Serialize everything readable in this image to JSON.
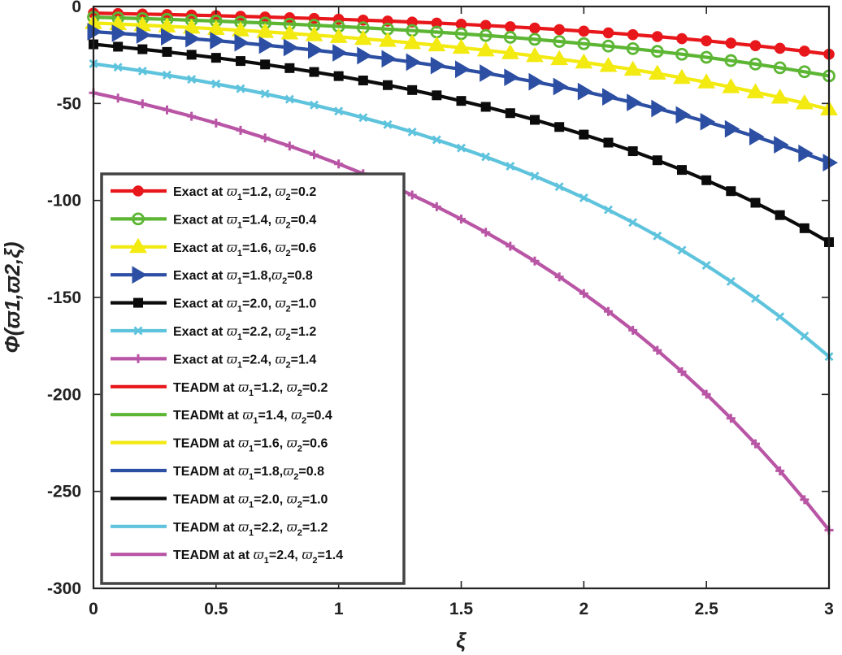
{
  "chart_data": {
    "type": "line",
    "title": "",
    "xlabel": "ξ",
    "ylabel": "Φ(ϖ1,ϖ2,ξ)",
    "xlim": [
      0,
      3
    ],
    "ylim": [
      -300,
      0
    ],
    "xticks": [
      0,
      0.5,
      1,
      1.5,
      2,
      2.5,
      3
    ],
    "xtick_labels": [
      "0",
      "0.5",
      "1",
      "1.5",
      "2",
      "2.5",
      "3"
    ],
    "yticks": [
      0,
      -50,
      -100,
      -150,
      -200,
      -250,
      -300
    ],
    "ytick_labels": [
      "0",
      "-50",
      "-100",
      "-150",
      "-200",
      "-250",
      "-300"
    ],
    "grid": false,
    "legend_position": "center-left",
    "x": [
      0,
      0.1,
      0.2,
      0.3,
      0.4,
      0.5,
      0.6,
      0.7,
      0.8,
      0.9,
      1.0,
      1.1,
      1.2,
      1.3,
      1.4,
      1.5,
      1.6,
      1.7,
      1.8,
      1.9,
      2.0,
      2.1,
      2.2,
      2.3,
      2.4,
      2.5,
      2.6,
      2.7,
      2.8,
      2.9,
      3.0
    ],
    "series": [
      {
        "name": "Exact at ",
        "p1": "=1.2, ",
        "p2": "=0.2",
        "color": "#e8171b",
        "marker": "circle",
        "start": -3.4,
        "end": -24.6
      },
      {
        "name": "Exact at ",
        "p1": "=1.4, ",
        "p2": "=0.4",
        "color": "#5cb634",
        "marker": "circle-open",
        "start": -5.5,
        "end": -35.8
      },
      {
        "name": "Exact at ",
        "p1": "=1.6, ",
        "p2": "=0.6",
        "color": "#f2ea10",
        "marker": "triangle-up",
        "start": -8.5,
        "end": -53.0
      },
      {
        "name": "Exact at ",
        "p1": "=1.8,",
        "p2": "=0.8",
        "color": "#2c4fa3",
        "marker": "triangle-right",
        "start": -13.0,
        "end": -80.5
      },
      {
        "name": "Exact at ",
        "p1": "=2.0, ",
        "p2": "=1.0",
        "color": "#0b0b0b",
        "marker": "square",
        "start": -19.5,
        "end": -121.5
      },
      {
        "name": "Exact at ",
        "p1": "=2.2, ",
        "p2": "=1.2",
        "color": "#5ec3dc",
        "marker": "x",
        "start": -29.5,
        "end": -180.5
      },
      {
        "name": "Exact at ",
        "p1": "=2.4, ",
        "p2": "=1.4",
        "color": "#b955a5",
        "marker": "plus",
        "start": -44.5,
        "end": -270.0
      },
      {
        "name": "TEADM at ",
        "p1": "=1.2, ",
        "p2": "=0.2",
        "color": "#e8171b",
        "marker": "none"
      },
      {
        "name": "TEADMt at ",
        "p1": "=1.4, ",
        "p2": "=0.4",
        "color": "#5cb634",
        "marker": "none"
      },
      {
        "name": "TEADM at ",
        "p1": "=1.6, ",
        "p2": "=0.6",
        "color": "#f2ea10",
        "marker": "none"
      },
      {
        "name": "TEADM at ",
        "p1": "=1.8,",
        "p2": "=0.8",
        "color": "#2c4fa3",
        "marker": "none"
      },
      {
        "name": "TEADM at ",
        "p1": "=2.0, ",
        "p2": "=1.0",
        "color": "#0b0b0b",
        "marker": "none"
      },
      {
        "name": "TEADM at ",
        "p1": "=2.2, ",
        "p2": "=1.2",
        "color": "#5ec3dc",
        "marker": "none"
      },
      {
        "name": "TEADM at at ",
        "p1": "=2.4, ",
        "p2": "=1.4",
        "color": "#b955a5",
        "marker": "none"
      }
    ]
  }
}
